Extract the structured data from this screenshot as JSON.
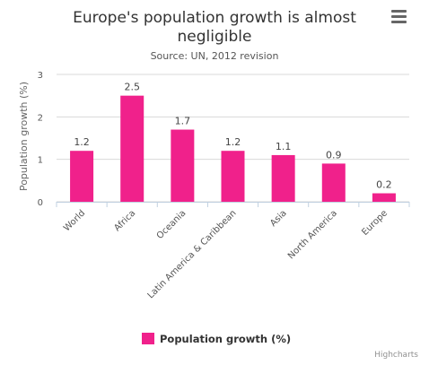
{
  "chart_data": {
    "type": "bar",
    "title": "Europe's population growth is almost negligible",
    "title_lines": [
      "Europe's population growth is almost",
      "negligible"
    ],
    "subtitle": "Source: UN, 2012 revision",
    "ylabel": "Population growth (%)",
    "xlabel": "",
    "ylim": [
      0,
      3
    ],
    "yticks": [
      0,
      1,
      2,
      3
    ],
    "grid": true,
    "legend_position": "bottom-center",
    "categories": [
      "World",
      "Africa",
      "Oceania",
      "Latin America & Caribbean",
      "Asia",
      "North America",
      "Europe"
    ],
    "series": [
      {
        "name": "Population growth (%)",
        "color": "#f0218b",
        "values": [
          1.2,
          2.5,
          1.7,
          1.2,
          1.1,
          0.9,
          0.2
        ],
        "labels": [
          "1.2",
          "2.5",
          "1.7",
          "1.2",
          "1.1",
          "0.9",
          "0.2"
        ]
      }
    ]
  },
  "menu": {
    "icon": "hamburger-menu-icon"
  },
  "credits": "Highcharts"
}
